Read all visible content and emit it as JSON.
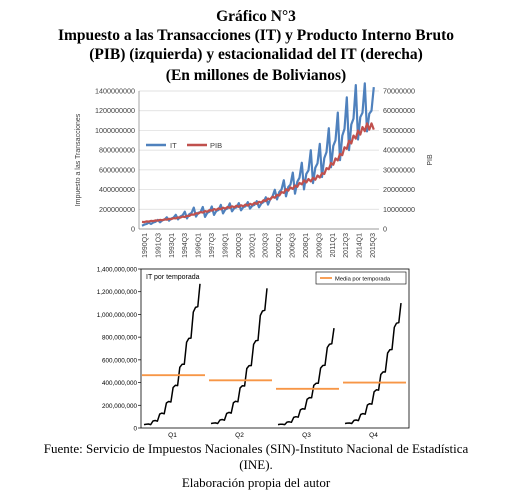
{
  "title": {
    "line1": "Gráfico N°3",
    "line2": "Impuesto a las Transacciones (IT) y Producto Interno Bruto",
    "line3": "(PIB) (izquierda) y estacionalidad del IT (derecha)",
    "line4": "(En millones de Bolivianos)"
  },
  "source": {
    "line1": "Fuente: Servicio de Impuestos Nacionales (SIN)-Instituto Nacional de Estadística",
    "line2": "(INE).",
    "line3": "Elaboración propia del autor"
  },
  "colors": {
    "it": "#4f81bd",
    "pib": "#c0504d",
    "black": "#000000",
    "mean": "#f79646",
    "grid": "#d9d9d9"
  },
  "chart_data": [
    {
      "type": "line",
      "xlabel": "",
      "ylabel": "Impuesto a las Transacciones",
      "y2label": "PIB",
      "ylim": [
        0,
        1400000000
      ],
      "y2lim": [
        0,
        70000000
      ],
      "yticks": [
        "0",
        "200000000",
        "400000000",
        "600000000",
        "800000000",
        "1000000000",
        "1200000000",
        "1400000000"
      ],
      "y2ticks": [
        "0",
        "10000000",
        "20000000",
        "30000000",
        "40000000",
        "50000000",
        "60000000",
        "70000000"
      ],
      "x_tick_labels": [
        "1990Q1",
        "1991Q3",
        "1993Q1",
        "1994Q3",
        "1996Q1",
        "1997Q3",
        "1999Q1",
        "2000Q3",
        "2002Q1",
        "2003Q3",
        "2005Q1",
        "2006Q3",
        "2008Q1",
        "2009Q3",
        "2011Q1",
        "2012Q3",
        "2014Q1",
        "2015Q3"
      ],
      "legend_position": "left",
      "grid": true,
      "series": [
        {
          "name": "IT",
          "axis": "left",
          "x": [
            "1990",
            "1991",
            "1992",
            "1993",
            "1994",
            "1995",
            "1996",
            "1997",
            "1998",
            "1999",
            "2000",
            "2001",
            "2002",
            "2003",
            "2004",
            "2005",
            "2006",
            "2007",
            "2008",
            "2009",
            "2010",
            "2011",
            "2012",
            "2013",
            "2014",
            "2015"
          ],
          "values": [
            40000000,
            62000000,
            85000000,
            105000000,
            125000000,
            150000000,
            175000000,
            165000000,
            185000000,
            200000000,
            215000000,
            225000000,
            235000000,
            255000000,
            290000000,
            370000000,
            430000000,
            470000000,
            570000000,
            620000000,
            710000000,
            850000000,
            950000000,
            1080000000,
            1160000000,
            1200000000
          ],
          "seasonal_amplitude": [
            5000000,
            8000000,
            12000000,
            15000000,
            20000000,
            30000000,
            35000000,
            30000000,
            30000000,
            30000000,
            25000000,
            25000000,
            20000000,
            25000000,
            30000000,
            50000000,
            70000000,
            80000000,
            120000000,
            110000000,
            130000000,
            160000000,
            180000000,
            200000000,
            180000000,
            150000000
          ]
        },
        {
          "name": "PIB",
          "axis": "right",
          "x": [
            "1990",
            "1991",
            "1992",
            "1993",
            "1994",
            "1995",
            "1996",
            "1997",
            "1998",
            "1999",
            "2000",
            "2001",
            "2002",
            "2003",
            "2004",
            "2005",
            "2006",
            "2007",
            "2008",
            "2009",
            "2010",
            "2011",
            "2012",
            "2013",
            "2014",
            "2015"
          ],
          "values": [
            3500000,
            4000000,
            4500000,
            5000000,
            5700000,
            6500000,
            7800000,
            8800000,
            9800000,
            10500000,
            11200000,
            11700000,
            12400000,
            13400000,
            15000000,
            16800000,
            19600000,
            21400000,
            24000000,
            25200000,
            27500000,
            32500000,
            37000000,
            43500000,
            48500000,
            52000000
          ]
        }
      ]
    },
    {
      "type": "line",
      "title": "IT por temporada",
      "ylim": [
        0,
        1400000000
      ],
      "yticks": [
        "0",
        "200,000,000",
        "400,000,000",
        "600,000,000",
        "800,000,000",
        "1,000,000,000",
        "1,200,000,000",
        "1,400,000,000"
      ],
      "categories": [
        "Q1",
        "Q2",
        "Q3",
        "Q4"
      ],
      "legend_position": "top-right",
      "series": [
        {
          "name": "Q1",
          "start": 30000000,
          "end": 1270000000,
          "shape": "convex"
        },
        {
          "name": "Q2",
          "start": 40000000,
          "end": 1230000000,
          "shape": "convex"
        },
        {
          "name": "Q3",
          "start": 30000000,
          "end": 880000000,
          "shape": "convex"
        },
        {
          "name": "Q4",
          "start": 40000000,
          "end": 1100000000,
          "shape": "convex"
        },
        {
          "name": "Media por temporada",
          "values": [
            465000000,
            420000000,
            345000000,
            400000000
          ]
        }
      ]
    }
  ]
}
